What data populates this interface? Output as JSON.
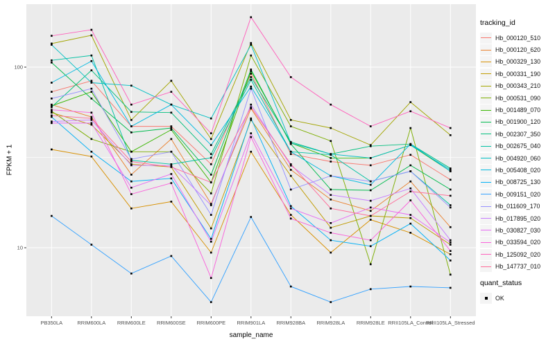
{
  "figure": {
    "panel_background": "#EBEBEB",
    "gridline_color": "#FFFFFF",
    "axis_text_color": "#4D4D4D",
    "tick_color": "#333333",
    "point_color": "#000000"
  },
  "chart_data": {
    "type": "line",
    "xlabel": "sample_name",
    "ylabel": "FPKM + 1",
    "y_scale": "log10",
    "y_ticks": [
      10,
      100
    ],
    "y_tick_labels": [
      "10",
      "100"
    ],
    "y_minor_gridlines": [
      31.6
    ],
    "ylim": [
      4.2,
      223
    ],
    "grid": true,
    "legend_position": "right",
    "categories": [
      "PB350LA",
      "RRIM600LA",
      "RRIM600LE",
      "RRIM600SE",
      "RRIM600PE",
      "RRIM901LA",
      "RRIM928BA",
      "RRIM928LA",
      "RRIM928LE",
      "RRII105LA_Control",
      "RRII105LA_Stressed"
    ],
    "series": [
      {
        "name": "Hb_000120_510",
        "color": "#F8766D",
        "values": [
          73,
          84,
          47,
          47,
          29,
          92,
          33,
          30,
          28.6,
          32.7,
          23.8
        ]
      },
      {
        "name": "Hb_000120_620",
        "color": "#EA8331",
        "values": [
          62,
          53,
          25.4,
          40,
          17.5,
          59,
          27,
          18.5,
          16,
          23.3,
          13
        ]
      },
      {
        "name": "Hb_000329_130",
        "color": "#D89000",
        "values": [
          35,
          32,
          16.5,
          18,
          9.4,
          34,
          15.2,
          9.4,
          14.3,
          12.1,
          9.2
        ]
      },
      {
        "name": "Hb_000331_190",
        "color": "#C09B00",
        "values": [
          56,
          48,
          29,
          28,
          12.8,
          51,
          25,
          12.9,
          15,
          14.6,
          10.4
        ]
      },
      {
        "name": "Hb_000343_210",
        "color": "#A3A500",
        "values": [
          135,
          150,
          51,
          84,
          40,
          136,
          51,
          46,
          37,
          64,
          42
        ]
      },
      {
        "name": "Hb_000531_090",
        "color": "#7CAE00",
        "values": [
          57,
          40,
          34,
          34,
          20,
          116,
          47,
          39,
          8.1,
          46,
          7.1
        ]
      },
      {
        "name": "Hb_001489_070",
        "color": "#39B600",
        "values": [
          61,
          73,
          34,
          45,
          23,
          95,
          38,
          31.4,
          31.4,
          37,
          26.5
        ]
      },
      {
        "name": "Hb_001900_120",
        "color": "#00BB4E",
        "values": [
          106,
          67,
          43.5,
          46,
          25.4,
          97,
          37.5,
          21,
          20.8,
          28.6,
          21
        ]
      },
      {
        "name": "Hb_002307_350",
        "color": "#00BF7D",
        "values": [
          60,
          96,
          56.5,
          56,
          33,
          88,
          38.5,
          33,
          36.5,
          37.5,
          27.5
        ]
      },
      {
        "name": "Hb_002675_040",
        "color": "#00C1A3",
        "values": [
          109,
          116,
          30.5,
          29,
          31.5,
          85,
          34,
          32.7,
          23.3,
          26.5,
          17.2
        ]
      },
      {
        "name": "Hb_004920_060",
        "color": "#00BFC4",
        "values": [
          133,
          82,
          79,
          62,
          52,
          133,
          38,
          33,
          31.4,
          37,
          27
        ]
      },
      {
        "name": "Hb_005408_020",
        "color": "#00BAE0",
        "values": [
          82,
          108,
          47,
          62,
          37,
          78,
          34,
          25,
          22.3,
          37.5,
          26.5
        ]
      },
      {
        "name": "Hb_008725_130",
        "color": "#00B0F6",
        "values": [
          53,
          34,
          23.3,
          24.2,
          11.2,
          52,
          17,
          11,
          10.2,
          13.6,
          8.5
        ]
      },
      {
        "name": "Hb_009151_020",
        "color": "#35A2FF",
        "values": [
          15,
          10.4,
          7.2,
          9,
          5,
          14.8,
          6.1,
          5,
          5.9,
          6.1,
          6
        ]
      },
      {
        "name": "Hb_011609_170",
        "color": "#9590FF",
        "values": [
          67,
          76,
          31,
          34,
          15.2,
          76,
          21,
          25,
          23.3,
          26.5,
          16.7
        ]
      },
      {
        "name": "Hb_017895_020",
        "color": "#C77CFF",
        "values": [
          50,
          51,
          28.6,
          28.5,
          17.2,
          62,
          28.5,
          19.6,
          18.2,
          21.3,
          11
        ]
      },
      {
        "name": "Hb_030827_030",
        "color": "#E76BF3",
        "values": [
          49,
          49,
          21.5,
          25.6,
          10.8,
          43,
          16.5,
          13.7,
          16.7,
          15.2,
          10.7
        ]
      },
      {
        "name": "Hb_033594_020",
        "color": "#FA62DB",
        "values": [
          58,
          56,
          19.8,
          22.8,
          6.8,
          41,
          14.5,
          12.1,
          11,
          18.3,
          9.6
        ]
      },
      {
        "name": "Hb_125092_020",
        "color": "#FF62BC",
        "values": [
          149,
          161,
          62,
          73,
          43,
          189,
          88,
          62,
          47,
          57,
          46
        ]
      },
      {
        "name": "Hb_147737_010",
        "color": "#FF6A98",
        "values": [
          54,
          52,
          30,
          28,
          23,
          60,
          29,
          16.5,
          15,
          20.5,
          19.4
        ]
      }
    ],
    "legend": {
      "color_title": "tracking_id",
      "shape_title": "quant_status",
      "shape_items": [
        {
          "label": "OK",
          "shape": "filled-square",
          "color": "#000000"
        }
      ]
    }
  }
}
